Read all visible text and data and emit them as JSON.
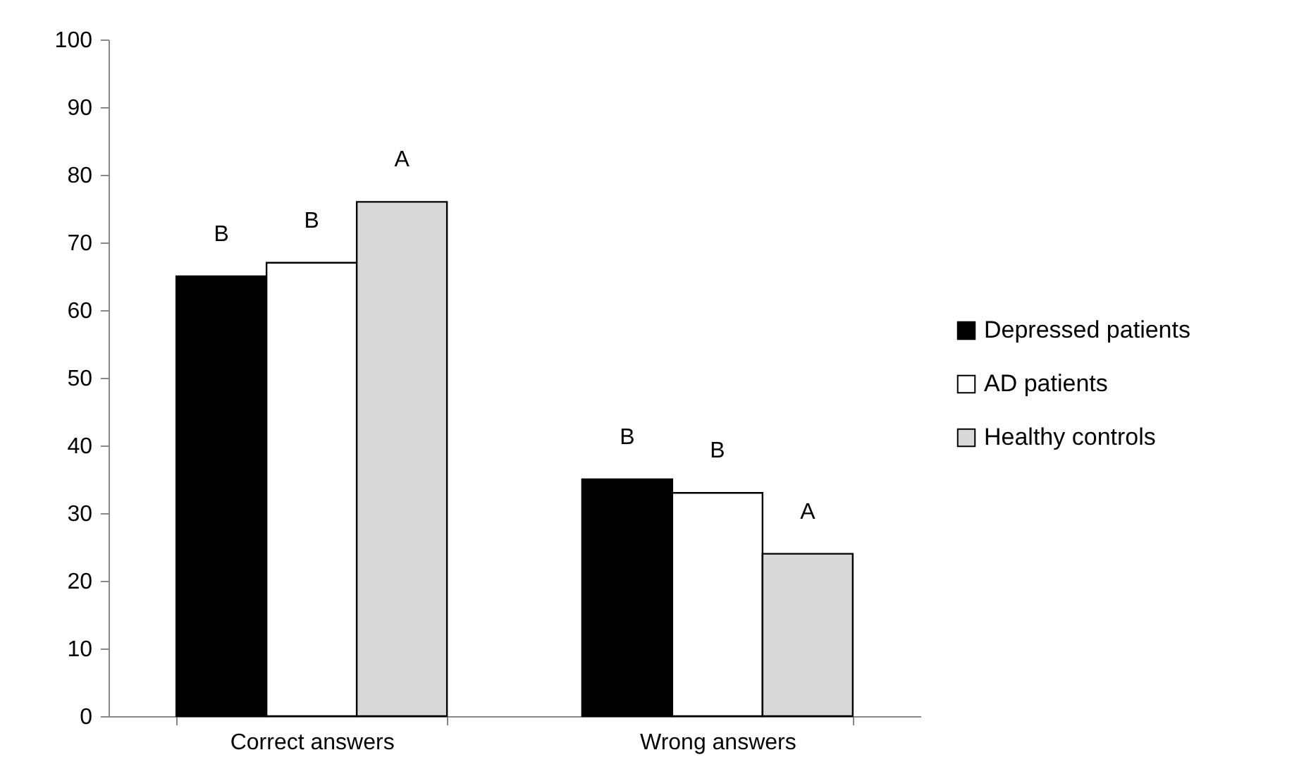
{
  "chart_data": {
    "type": "bar",
    "categories": [
      "Correct answers",
      "Wrong answers"
    ],
    "series": [
      {
        "name": "Depressed patients",
        "color": "#000000",
        "values": [
          65,
          35
        ]
      },
      {
        "name": "AD patients",
        "color": "#ffffff",
        "values": [
          67,
          33
        ]
      },
      {
        "name": "Healthy controls",
        "color": "#d9d9d9",
        "values": [
          76,
          24
        ]
      }
    ],
    "ylim": [
      0,
      100
    ],
    "yticks": [
      0,
      10,
      20,
      30,
      40,
      50,
      60,
      70,
      80,
      90,
      100
    ],
    "grid": false,
    "legend": "right",
    "annotations": [
      "B",
      "B",
      "A",
      "B",
      "B",
      "A"
    ]
  }
}
